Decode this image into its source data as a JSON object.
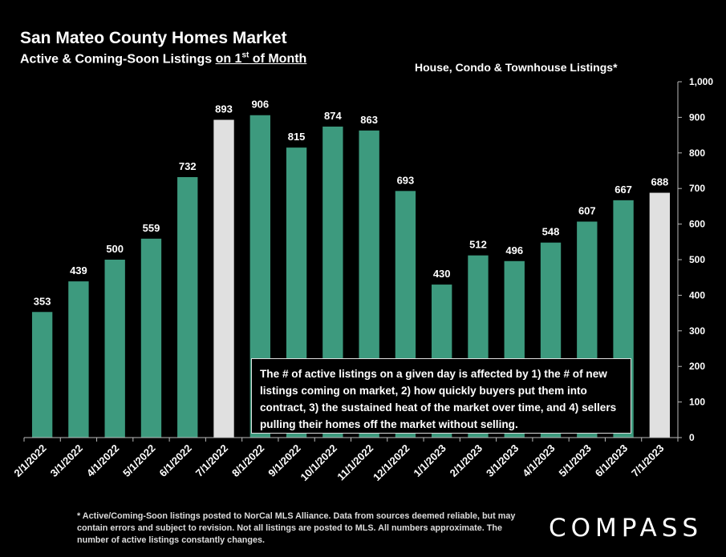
{
  "header": {
    "title": "San Mateo County Homes Market",
    "subtitle_prefix": "Active & Coming-Soon Listings ",
    "subtitle_underlined_pre": "on 1",
    "subtitle_sup": "st",
    "subtitle_underlined_post": " of Month",
    "series_label": "House, Condo & Townhouse Listings*"
  },
  "note": "The # of active listings on a given day is affected by 1) the # of new listings coming on market, 2) how quickly buyers put them into contract, 3) the sustained heat of the market over time, and 4) sellers pulling their homes off the market without selling.",
  "footnote": "* Active/Coming-Soon listings posted to NorCal MLS Alliance.  Data from sources deemed reliable, but may contain errors and subject to revision.  Not all listings are posted to MLS. All numbers approximate. The number of active listings constantly changes.",
  "logo": "COMPASS",
  "colors": {
    "bar": "#3d9a7e",
    "highlight": "#e0e0e0",
    "background": "#000000",
    "text": "#ffffff"
  },
  "chart_data": {
    "type": "bar",
    "categories": [
      "2/1/2022",
      "3/1/2022",
      "4/1/2022",
      "5/1/2022",
      "6/1/2022",
      "7/1/2022",
      "8/1/2022",
      "9/1/2022",
      "10/1/2022",
      "11/1/2022",
      "12/1/2022",
      "1/1/2023",
      "2/1/2023",
      "3/1/2023",
      "4/1/2023",
      "5/1/2023",
      "6/1/2023",
      "7/1/2023"
    ],
    "values": [
      353,
      439,
      500,
      559,
      732,
      893,
      906,
      815,
      874,
      863,
      693,
      430,
      512,
      496,
      548,
      607,
      667,
      688
    ],
    "highlighted_categories": [
      "7/1/2022",
      "7/1/2023"
    ],
    "ylim": [
      0,
      1000
    ],
    "yticks": [
      0,
      100,
      200,
      300,
      400,
      500,
      600,
      700,
      800,
      900,
      1000
    ],
    "ytick_labels": [
      "0",
      "100",
      "200",
      "300",
      "400",
      "500",
      "600",
      "700",
      "800",
      "900",
      "1,000"
    ],
    "y_axis_side": "right",
    "grid": false,
    "data_labels": true
  }
}
